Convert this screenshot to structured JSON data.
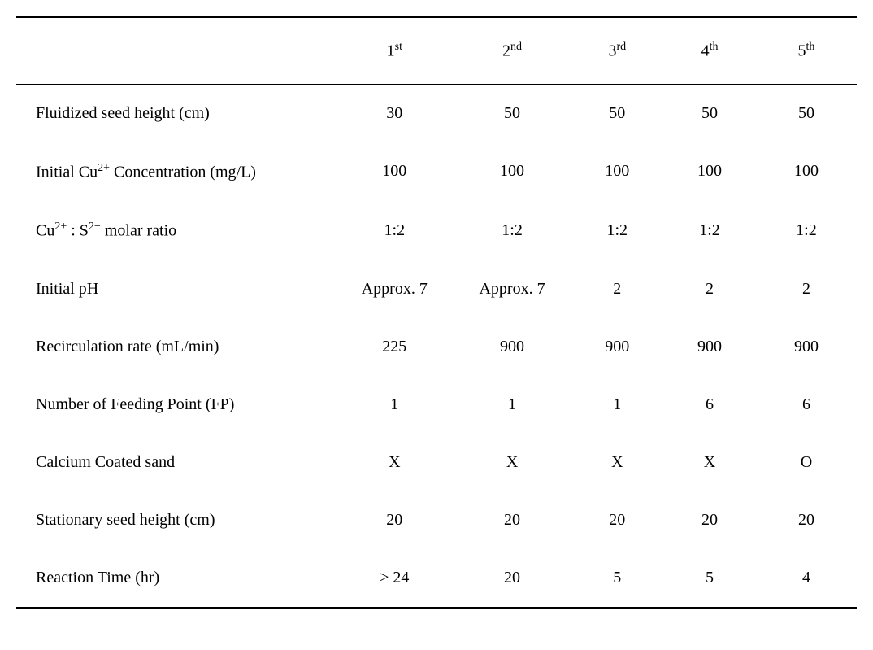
{
  "table": {
    "columns": [
      {
        "ordinal": "1",
        "suffix": "st"
      },
      {
        "ordinal": "2",
        "suffix": "nd"
      },
      {
        "ordinal": "3",
        "suffix": "rd"
      },
      {
        "ordinal": "4",
        "suffix": "th"
      },
      {
        "ordinal": "5",
        "suffix": "th"
      }
    ],
    "rows": [
      {
        "label_html": "Fluidized seed height (cm)",
        "values": [
          "30",
          "50",
          "50",
          "50",
          "50"
        ]
      },
      {
        "label_html": "Initial Cu<sup>2+</sup> Concentration (mg/L)",
        "values": [
          "100",
          "100",
          "100",
          "100",
          "100"
        ]
      },
      {
        "label_html": "Cu<sup>2+</sup> : S<sup>2−</sup> molar ratio",
        "values": [
          "1:2",
          "1:2",
          "1:2",
          "1:2",
          "1:2"
        ]
      },
      {
        "label_html": "Initial pH",
        "values": [
          "Approx. 7",
          "Approx. 7",
          "2",
          "2",
          "2"
        ]
      },
      {
        "label_html": "Recirculation rate (mL/min)",
        "values": [
          "225",
          "900",
          "900",
          "900",
          "900"
        ]
      },
      {
        "label_html": "Number of Feeding Point (FP)",
        "values": [
          "1",
          "1",
          "1",
          "6",
          "6"
        ]
      },
      {
        "label_html": "Calcium Coated sand",
        "values": [
          "X",
          "X",
          "X",
          "X",
          "O"
        ]
      },
      {
        "label_html": "Stationary seed height (cm)",
        "values": [
          "20",
          "20",
          "20",
          "20",
          "20"
        ]
      },
      {
        "label_html": "Reaction Time (hr)",
        "values": [
          "> 24",
          "20",
          "5",
          "5",
          "4"
        ]
      }
    ],
    "styling": {
      "font_family": "Times New Roman",
      "font_size_pt": 20,
      "text_color": "#000000",
      "background_color": "#ffffff",
      "top_border_width": 2,
      "header_bottom_border_width": 1,
      "bottom_border_width": 2,
      "border_color": "#000000",
      "first_col_width_pct": 38,
      "other_col_widths_pct": [
        14,
        14,
        11,
        11,
        12
      ],
      "header_cell_padding_v": 28,
      "body_cell_padding_v": 24,
      "first_col_padding_left": 24,
      "first_col_align": "left",
      "other_col_align": "center"
    }
  }
}
